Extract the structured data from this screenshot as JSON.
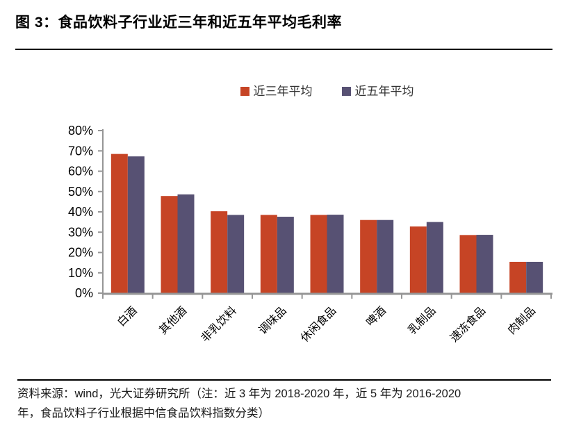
{
  "figure": {
    "title": "图 3：食品饮料子行业近三年和近五年平均毛利率",
    "source_note_line1": "资料来源：wind，光大证券研究所（注：近 3 年为 2018-2020 年，近 5 年为 2016-2020",
    "source_note_line2": "年，食品饮料子行业根据中信食品饮料指数分类）"
  },
  "chart_data": {
    "type": "bar",
    "title": "",
    "xlabel": "",
    "ylabel": "",
    "categories": [
      "白酒",
      "其他酒",
      "非乳饮料",
      "调味品",
      "休闲食品",
      "啤酒",
      "乳制品",
      "速冻食品",
      "肉制品"
    ],
    "series": [
      {
        "name": "近三年平均",
        "color": "#C64425",
        "values": [
          68.5,
          47.8,
          40.3,
          38.5,
          38.5,
          36.0,
          32.8,
          28.6,
          15.4
        ]
      },
      {
        "name": "近五年平均",
        "color": "#575173",
        "values": [
          67.3,
          48.6,
          38.5,
          37.6,
          38.6,
          36.0,
          35.0,
          28.7,
          15.4
        ]
      }
    ],
    "ylim": [
      0,
      80
    ],
    "ytick_step": 10,
    "ytick_suffix": "%",
    "grid": false,
    "legend_position": "top-center",
    "axis_color": "#969696",
    "tick_label_color": "#000000",
    "category_label_rotation_deg": 45
  }
}
